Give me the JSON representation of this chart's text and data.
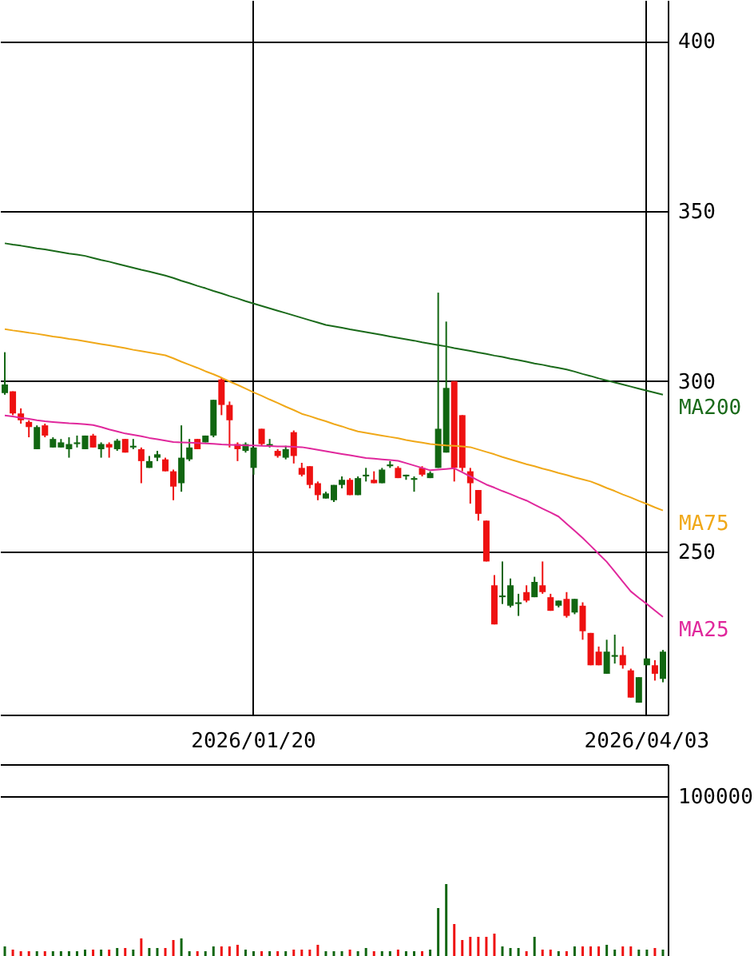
{
  "chart_data": [
    {
      "type": "candlestick",
      "categories": [
        null,
        null,
        null,
        null,
        null,
        null,
        null,
        null,
        null,
        null,
        null,
        null,
        null,
        null,
        null,
        null,
        null,
        null,
        null,
        null,
        null,
        null,
        null,
        null,
        null,
        null,
        null,
        null,
        null,
        null,
        null,
        "2026/01/20",
        null,
        null,
        null,
        null,
        null,
        null,
        null,
        null,
        null,
        null,
        null,
        null,
        null,
        null,
        null,
        null,
        null,
        null,
        null,
        null,
        null,
        null,
        null,
        null,
        null,
        null,
        null,
        null,
        null,
        null,
        null,
        null,
        null,
        null,
        null,
        null,
        null,
        null,
        null,
        null,
        null,
        null,
        null,
        null,
        null,
        null,
        null,
        null,
        "2026/04/03",
        null,
        null
      ],
      "ohlc": [
        [
          296.5,
          308.5,
          296,
          299
        ],
        [
          297,
          297,
          290,
          290.5
        ],
        [
          290.5,
          292,
          287.5,
          288.5
        ],
        [
          288,
          288.5,
          283.5,
          286.5
        ],
        [
          280,
          287,
          280,
          286.5
        ],
        [
          287,
          287.5,
          283.5,
          284
        ],
        [
          280.5,
          283.5,
          280.5,
          283
        ],
        [
          280.5,
          283,
          280.5,
          282
        ],
        [
          280,
          283.5,
          277.5,
          281.5
        ],
        [
          281.5,
          284,
          280.5,
          282
        ],
        [
          280,
          284,
          280,
          284
        ],
        [
          284,
          284.5,
          280.5,
          280.5
        ],
        [
          280,
          282,
          277.5,
          281.5
        ],
        [
          281.5,
          282,
          277.5,
          280.5
        ],
        [
          280,
          283,
          279.5,
          282.5
        ],
        [
          283,
          283,
          279,
          279
        ],
        [
          280.5,
          283,
          280,
          281
        ],
        [
          280,
          280.5,
          270,
          276.5
        ],
        [
          274.5,
          278,
          274.5,
          276.5
        ],
        [
          277.5,
          279.5,
          276.5,
          278.5
        ],
        [
          277,
          277.5,
          273.5,
          273.5
        ],
        [
          273.5,
          274,
          265,
          269
        ],
        [
          270,
          287,
          267.5,
          277.5
        ],
        [
          277,
          283,
          276.5,
          280.5
        ],
        [
          283,
          283,
          280,
          280
        ],
        [
          282,
          284,
          282,
          284
        ],
        [
          284,
          294.5,
          283.5,
          294.5
        ],
        [
          300.5,
          301,
          290,
          293
        ],
        [
          293,
          294,
          280.5,
          288.5
        ],
        [
          281.5,
          282,
          276.5,
          280
        ],
        [
          279.5,
          282,
          279,
          281.5
        ],
        [
          274.5,
          280.5,
          272.5,
          280.5
        ],
        [
          286,
          286,
          281,
          281.5
        ],
        [
          281,
          283,
          280.5,
          281.5
        ],
        [
          279.5,
          280,
          277.5,
          278
        ],
        [
          277.5,
          281,
          277,
          280
        ],
        [
          285,
          285.5,
          275.8,
          278
        ],
        [
          274.5,
          276,
          272,
          272.5
        ],
        [
          275,
          275,
          268.5,
          269.5
        ],
        [
          270,
          270.5,
          265,
          266.5
        ],
        [
          265.5,
          267.5,
          265.5,
          267
        ],
        [
          265,
          269.5,
          264.5,
          269.5
        ],
        [
          269.5,
          272,
          268.5,
          271
        ],
        [
          271,
          271.5,
          266.5,
          266.5
        ],
        [
          266.5,
          272,
          266.5,
          271.5
        ],
        [
          272,
          274.5,
          270.5,
          272.5
        ],
        [
          271,
          273.5,
          270,
          270
        ],
        [
          270,
          274.5,
          270,
          274
        ],
        [
          275,
          276.5,
          274.5,
          275.5
        ],
        [
          274.5,
          275,
          271.5,
          271.5
        ],
        [
          272,
          272.5,
          271,
          272.5
        ],
        [
          271,
          272,
          267.5,
          271.5
        ],
        [
          274.5,
          275,
          272,
          272.5
        ],
        [
          271.5,
          273.5,
          271.5,
          273
        ],
        [
          274.5,
          326,
          274.5,
          286
        ],
        [
          279,
          317.5,
          279,
          298
        ],
        [
          300,
          300,
          270.5,
          274.5
        ],
        [
          290,
          290,
          273.5,
          274.5
        ],
        [
          273.5,
          274.5,
          264,
          270
        ],
        [
          268,
          268,
          259,
          261
        ],
        [
          259,
          259,
          247,
          247
        ],
        [
          240,
          243,
          228.5,
          228.5
        ],
        [
          236.5,
          247,
          234.5,
          237
        ],
        [
          234,
          242,
          233.5,
          240
        ],
        [
          234.5,
          237.5,
          231,
          235
        ],
        [
          238,
          240,
          235,
          235.5
        ],
        [
          236.5,
          242.5,
          236.5,
          241
        ],
        [
          240,
          247,
          237.5,
          238
        ],
        [
          236.5,
          237.5,
          232.5,
          232.5
        ],
        [
          234,
          235.5,
          233.5,
          235.5
        ],
        [
          236,
          238,
          230.5,
          231
        ],
        [
          232,
          236,
          231.5,
          236
        ],
        [
          234,
          235,
          224,
          226.5
        ],
        [
          226,
          226,
          216.5,
          216.5
        ],
        [
          220.5,
          222,
          216.5,
          216.5
        ],
        [
          214,
          224,
          214,
          220.5
        ],
        [
          219,
          225.5,
          217,
          219.5
        ],
        [
          219.5,
          222,
          215.5,
          216.5
        ],
        [
          215,
          215.5,
          207,
          207
        ],
        [
          205.5,
          213,
          205.5,
          213
        ],
        [
          216.5,
          218.5,
          216.5,
          218.5
        ],
        [
          216.5,
          218,
          212,
          214
        ],
        [
          212.5,
          221,
          211.5,
          220.5
        ]
      ],
      "colors": [
        "#116611",
        "#ee1111",
        "#ee1111",
        "#ee1111",
        "#116611",
        "#ee1111",
        "#116611",
        "#116611",
        "#116611",
        "#116611",
        "#116611",
        "#ee1111",
        "#116611",
        "#ee1111",
        "#116611",
        "#ee1111",
        "#116611",
        "#ee1111",
        "#116611",
        "#116611",
        "#ee1111",
        "#ee1111",
        "#116611",
        "#116611",
        "#ee1111",
        "#116611",
        "#116611",
        "#ee1111",
        "#ee1111",
        "#ee1111",
        "#116611",
        "#116611",
        "#ee1111",
        "#116611",
        "#ee1111",
        "#116611",
        "#ee1111",
        "#ee1111",
        "#ee1111",
        "#ee1111",
        "#116611",
        "#116611",
        "#116611",
        "#ee1111",
        "#116611",
        "#116611",
        "#ee1111",
        "#116611",
        "#116611",
        "#ee1111",
        "#116611",
        "#116611",
        "#ee1111",
        "#116611",
        "#116611",
        "#116611",
        "#ee1111",
        "#ee1111",
        "#ee1111",
        "#ee1111",
        "#ee1111",
        "#ee1111",
        "#116611",
        "#116611",
        "#116611",
        "#ee1111",
        "#116611",
        "#ee1111",
        "#ee1111",
        "#116611",
        "#ee1111",
        "#116611",
        "#ee1111",
        "#ee1111",
        "#ee1111",
        "#116611",
        "#116611",
        "#ee1111",
        "#ee1111",
        "#116611",
        "#116611",
        "#ee1111",
        "#116611"
      ],
      "series": [
        {
          "name": "MA200",
          "type": "line",
          "color": "#1a6a1a",
          "values": [
            340.5,
            340.1,
            339.8,
            339.4,
            339.0,
            338.7,
            338.3,
            337.9,
            337.5,
            337.2,
            336.8,
            336.2,
            335.6,
            335.1,
            334.5,
            333.9,
            333.3,
            332.7,
            332.2,
            331.6,
            331.0,
            330.3,
            329.5,
            328.8,
            328.0,
            327.3,
            326.5,
            325.8,
            325.0,
            324.3,
            323.5,
            322.8,
            322.1,
            321.4,
            320.7,
            320.0,
            319.3,
            318.6,
            317.9,
            317.2,
            316.5,
            316.1,
            315.7,
            315.2,
            314.8,
            314.4,
            314.0,
            313.6,
            313.1,
            312.7,
            312.3,
            311.9,
            311.4,
            311.0,
            310.6,
            310.2,
            309.7,
            309.3,
            308.9,
            308.4,
            308.0,
            307.5,
            307.1,
            306.6,
            306.2,
            305.7,
            305.2,
            304.8,
            304.3,
            303.9,
            303.4,
            302.8,
            302.1,
            301.5,
            300.8,
            300.2,
            299.6,
            299.0,
            298.4,
            297.8,
            297.2,
            296.6,
            296.0
          ]
        },
        {
          "name": "MA75",
          "type": "line",
          "color": "#f0a818",
          "values": [
            315.3,
            314.9,
            314.6,
            314.2,
            313.9,
            313.5,
            313.1,
            312.8,
            312.4,
            312.1,
            311.7,
            311.3,
            310.9,
            310.5,
            310.1,
            309.7,
            309.2,
            308.8,
            308.4,
            308.0,
            307.6,
            306.7,
            305.7,
            304.8,
            303.9,
            302.9,
            302.0,
            301.0,
            299.9,
            298.9,
            297.8,
            296.7,
            295.7,
            294.6,
            293.6,
            292.5,
            291.5,
            290.4,
            289.7,
            288.9,
            288.2,
            287.4,
            286.7,
            285.9,
            285.2,
            284.8,
            284.4,
            284.0,
            283.6,
            283.2,
            282.7,
            282.3,
            281.9,
            281.5,
            281.3,
            281.1,
            281.0,
            280.8,
            280.6,
            279.9,
            279.2,
            278.5,
            277.7,
            277.0,
            276.3,
            275.6,
            275.0,
            274.3,
            273.7,
            273.0,
            272.4,
            271.7,
            271.1,
            270.5,
            269.6,
            268.6,
            267.7,
            266.7,
            265.8,
            264.8,
            263.9,
            262.9,
            262.0
          ]
        },
        {
          "name": "MA25",
          "type": "line",
          "color": "#e0289c",
          "values": [
            289.9,
            289.6,
            289.2,
            288.9,
            288.5,
            288.2,
            288.0,
            287.8,
            287.6,
            287.5,
            287.3,
            287.1,
            286.5,
            285.8,
            285.2,
            284.6,
            284.2,
            283.8,
            283.3,
            282.9,
            282.5,
            282.1,
            282.0,
            281.9,
            281.8,
            281.7,
            281.6,
            281.4,
            281.3,
            281.2,
            281.1,
            281.1,
            281.0,
            280.9,
            280.8,
            280.8,
            280.7,
            280.6,
            280.2,
            279.8,
            279.4,
            279.0,
            278.6,
            278.2,
            277.8,
            277.4,
            277.2,
            277.0,
            276.8,
            276.6,
            275.9,
            275.2,
            274.5,
            273.8,
            274.0,
            274.2,
            274.4,
            273.2,
            272.0,
            270.8,
            269.6,
            268.7,
            267.7,
            266.8,
            265.8,
            264.9,
            263.7,
            262.5,
            261.4,
            260.2,
            258.1,
            256.0,
            253.9,
            251.6,
            249.2,
            246.9,
            244.0,
            241.1,
            238.2,
            236.3,
            234.5,
            232.6,
            230.7
          ]
        }
      ],
      "ylim": [
        202,
        412
      ],
      "yticks": [
        250,
        300,
        350,
        400
      ],
      "grid": true
    },
    {
      "type": "bar",
      "categories": [
        null,
        null,
        null,
        null,
        null,
        null,
        null,
        null,
        null,
        null,
        null,
        null,
        null,
        null,
        null,
        null,
        null,
        null,
        null,
        null,
        null,
        null,
        null,
        null,
        null,
        null,
        null,
        null,
        null,
        null,
        null,
        null,
        null,
        null,
        null,
        null,
        null,
        null,
        null,
        null,
        null,
        null,
        null,
        null,
        null,
        null,
        null,
        null,
        null,
        null,
        null,
        null,
        null,
        null,
        null,
        null,
        null,
        null,
        null,
        null,
        null,
        null,
        null,
        null,
        null,
        null,
        null,
        null,
        null,
        null,
        null,
        null,
        null,
        null,
        null,
        null,
        null,
        null,
        null,
        null,
        null,
        null,
        null
      ],
      "values": [
        6000,
        4000,
        3000,
        3000,
        3000,
        3000,
        3000,
        3000,
        3000,
        3000,
        4000,
        4000,
        4000,
        4000,
        5000,
        5000,
        4000,
        11000,
        5000,
        5000,
        5000,
        10000,
        11000,
        3000,
        3000,
        3000,
        6000,
        6000,
        6000,
        7000,
        4000,
        3000,
        3000,
        3000,
        3000,
        3000,
        4000,
        4000,
        4000,
        7000,
        3000,
        3000,
        3000,
        4000,
        3000,
        5000,
        3000,
        3000,
        3000,
        4000,
        3000,
        3000,
        3000,
        4000,
        30000,
        45000,
        20000,
        10000,
        12000,
        12000,
        12000,
        14000,
        6000,
        5000,
        5000,
        3000,
        12000,
        4000,
        4000,
        3000,
        3000,
        6000,
        6000,
        6000,
        6000,
        7000,
        4000,
        6000,
        6000,
        4000,
        4000,
        5000,
        4000
      ],
      "colors": [
        "#116611",
        "#ee1111",
        "#ee1111",
        "#ee1111",
        "#116611",
        "#ee1111",
        "#116611",
        "#116611",
        "#116611",
        "#116611",
        "#116611",
        "#ee1111",
        "#116611",
        "#ee1111",
        "#116611",
        "#ee1111",
        "#116611",
        "#ee1111",
        "#116611",
        "#116611",
        "#ee1111",
        "#ee1111",
        "#116611",
        "#116611",
        "#ee1111",
        "#116611",
        "#116611",
        "#ee1111",
        "#ee1111",
        "#ee1111",
        "#116611",
        "#116611",
        "#ee1111",
        "#116611",
        "#ee1111",
        "#116611",
        "#ee1111",
        "#ee1111",
        "#ee1111",
        "#ee1111",
        "#116611",
        "#116611",
        "#116611",
        "#ee1111",
        "#116611",
        "#116611",
        "#ee1111",
        "#116611",
        "#116611",
        "#ee1111",
        "#116611",
        "#116611",
        "#ee1111",
        "#116611",
        "#116611",
        "#116611",
        "#ee1111",
        "#ee1111",
        "#ee1111",
        "#ee1111",
        "#ee1111",
        "#ee1111",
        "#116611",
        "#116611",
        "#116611",
        "#ee1111",
        "#116611",
        "#ee1111",
        "#ee1111",
        "#116611",
        "#ee1111",
        "#116611",
        "#ee1111",
        "#ee1111",
        "#ee1111",
        "#116611",
        "#116611",
        "#ee1111",
        "#ee1111",
        "#116611",
        "#116611",
        "#ee1111",
        "#116611"
      ],
      "ylim": [
        0,
        120000
      ],
      "yticks": [
        100000
      ],
      "grid": "y",
      "tick_labels": "y"
    }
  ]
}
